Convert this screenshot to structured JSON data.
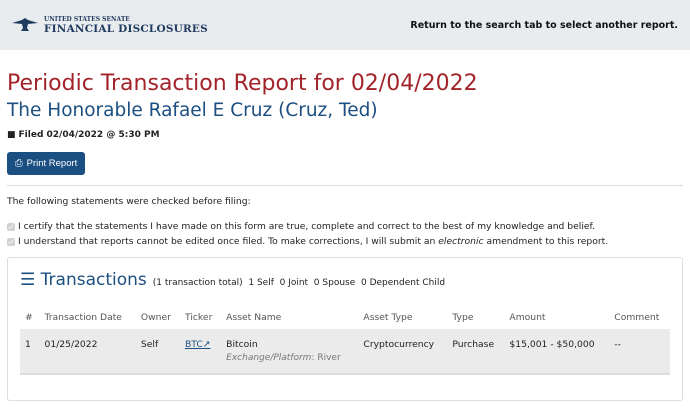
{
  "header": {
    "logo_line1": "UNITED STATES SENATE",
    "logo_line2": "FINANCIAL DISCLOSURES",
    "return_text": "Return to the search tab to select another report."
  },
  "report": {
    "title": "Periodic Transaction Report for 02/04/2022",
    "name": "The Honorable Rafael E Cruz (Cruz, Ted)",
    "filed": "Filed 02/04/2022 @ 5:30 PM",
    "print_label": "Print Report"
  },
  "statements": {
    "intro": "The following statements were checked before filing:",
    "s1": "I certify that the statements I have made on this form are true, complete and correct to the best of my knowledge and belief.",
    "s2a": "I understand that reports cannot be edited once filed. To make corrections, I will submit an ",
    "s2b": "electronic",
    "s2c": " amendment to this report."
  },
  "transactions": {
    "title": "Transactions",
    "summary": "(1 transaction total)  1 Self  0 Joint  0 Spouse  0 Dependent Child",
    "columns": [
      "#",
      "Transaction Date",
      "Owner",
      "Ticker",
      "Asset Name",
      "Asset Type",
      "Type",
      "Amount",
      "Comment"
    ],
    "rows": [
      {
        "num": "1",
        "date": "01/25/2022",
        "owner": "Self",
        "ticker": "BTC",
        "asset": "Bitcoin",
        "platform_label": "Exchange/Platform",
        "platform": ": River",
        "asset_type": "Cryptocurrency",
        "type": "Purchase",
        "amount": "$15,001 - $50,000",
        "comment": "--"
      }
    ]
  }
}
